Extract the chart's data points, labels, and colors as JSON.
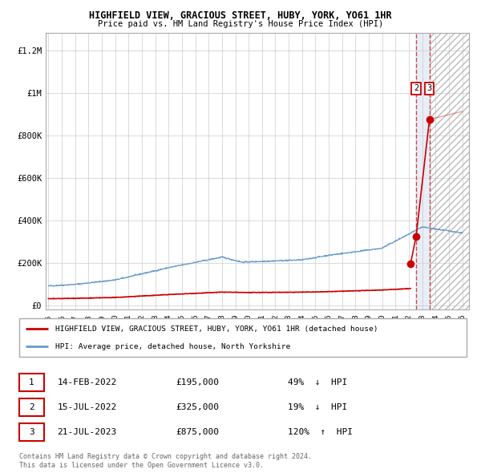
{
  "title": "HIGHFIELD VIEW, GRACIOUS STREET, HUBY, YORK, YO61 1HR",
  "subtitle": "Price paid vs. HM Land Registry's House Price Index (HPI)",
  "xlim": [
    1994.8,
    2026.5
  ],
  "ylim": [
    -20000,
    1280000
  ],
  "yticks": [
    0,
    200000,
    400000,
    600000,
    800000,
    1000000,
    1200000
  ],
  "ytick_labels": [
    "£0",
    "£200K",
    "£400K",
    "£600K",
    "£800K",
    "£1M",
    "£1.2M"
  ],
  "xticks": [
    1995,
    1996,
    1997,
    1998,
    1999,
    2000,
    2001,
    2002,
    2003,
    2004,
    2005,
    2006,
    2007,
    2008,
    2009,
    2010,
    2011,
    2012,
    2013,
    2014,
    2015,
    2016,
    2017,
    2018,
    2019,
    2020,
    2021,
    2022,
    2023,
    2024,
    2025,
    2026
  ],
  "red_line_color": "#cc0000",
  "blue_line_color": "#6699cc",
  "grid_color": "#cccccc",
  "transactions": [
    {
      "num": 1,
      "date": "14-FEB-2022",
      "price": 195000,
      "pct": "49%",
      "dir": "↓",
      "year": 2022.12
    },
    {
      "num": 2,
      "date": "15-JUL-2022",
      "price": 325000,
      "pct": "19%",
      "dir": "↓",
      "year": 2022.54
    },
    {
      "num": 3,
      "date": "21-JUL-2023",
      "price": 875000,
      "pct": "120%",
      "dir": "↑",
      "year": 2023.54
    }
  ],
  "legend_label_red": "HIGHFIELD VIEW, GRACIOUS STREET, HUBY, YORK, YO61 1HR (detached house)",
  "legend_label_blue": "HPI: Average price, detached house, North Yorkshire",
  "footer": "Contains HM Land Registry data © Crown copyright and database right 2024.\nThis data is licensed under the Open Government Licence v3.0."
}
